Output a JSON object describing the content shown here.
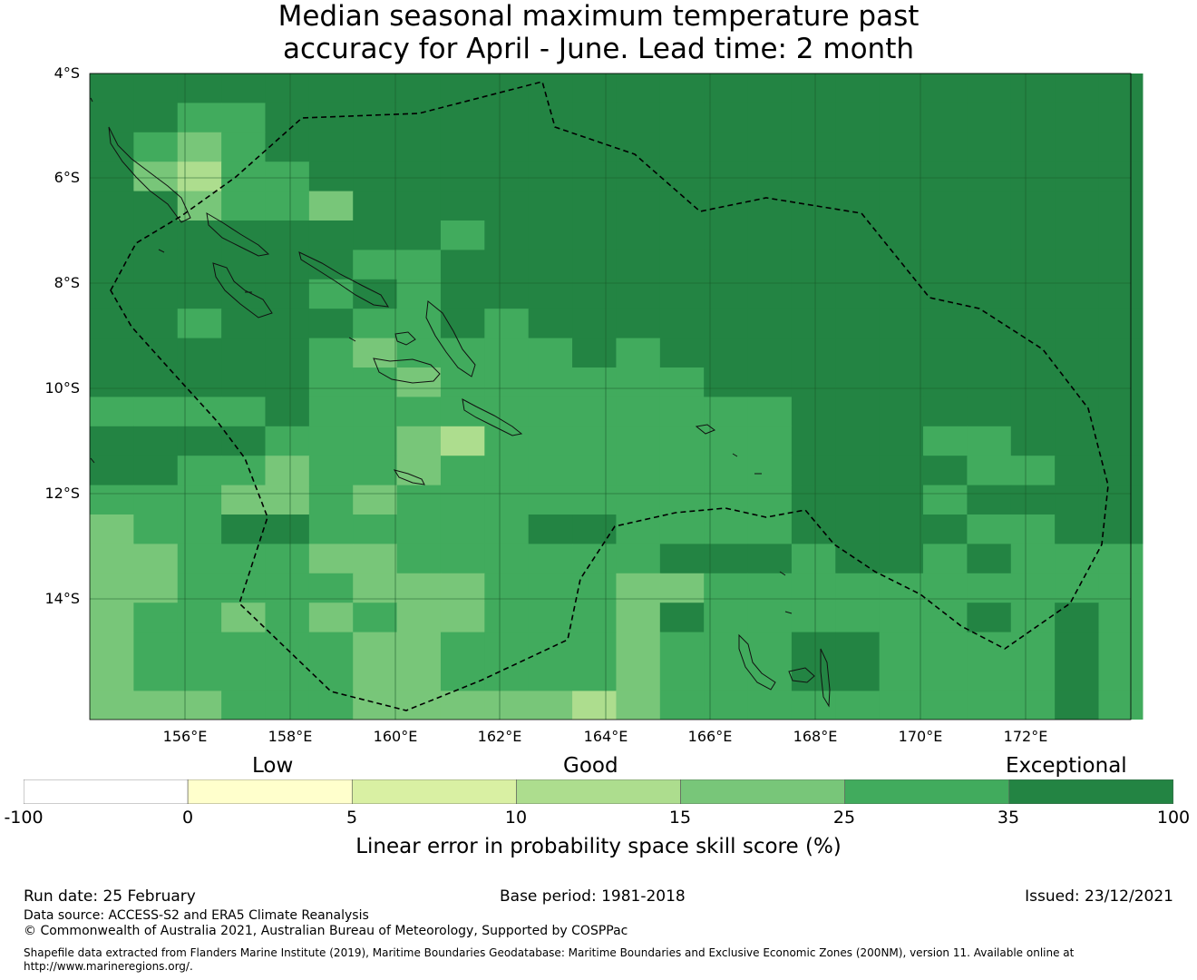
{
  "title": {
    "line1": "Median seasonal maximum temperature past",
    "line2": "accuracy for April - June. Lead time: 2 month"
  },
  "map": {
    "lat_labels": [
      "4°S",
      "6°S",
      "8°S",
      "10°S",
      "12°S",
      "14°S"
    ],
    "lon_labels": [
      "156°E",
      "158°E",
      "160°E",
      "162°E",
      "164°E",
      "166°E",
      "168°E",
      "170°E",
      "172°E"
    ],
    "lon_range": [
      154.2,
      174.0
    ],
    "lat_range": [
      -4.0,
      -16.3
    ],
    "gridlines": true,
    "region": "Solomon Islands EEZ"
  },
  "legend": {
    "categories": [
      "Low",
      "Good",
      "Exceptional"
    ],
    "ticks": [
      "-100",
      "0",
      "5",
      "10",
      "15",
      "25",
      "35",
      "100"
    ],
    "colors": [
      "#ffffff",
      "#ffffcc",
      "#d9f0a3",
      "#addd8e",
      "#78c679",
      "#41ab5d",
      "#238443"
    ],
    "label": "Linear error in probability space skill score (%)"
  },
  "footer": {
    "run_date": "Run date: 25 February",
    "base_period": "Base period: 1981-2018",
    "issued": "Issued: 23/12/2021",
    "data_source": "Data source: ACCESS-S2 and ERA5 Climate Reanalysis",
    "copyright": "© Commonwealth of Australia 2021, Australian Bureau of Meteorology, Supported by COSPPac",
    "shapefile_1": "Shapefile data extracted from Flanders Marine Institute (2019), Maritime Boundaries Geodatabase: Maritime Boundaries and Exclusive Economic Zones (200NM), version 11. Available online at",
    "shapefile_2": "http://www.marineregions.org/."
  }
}
